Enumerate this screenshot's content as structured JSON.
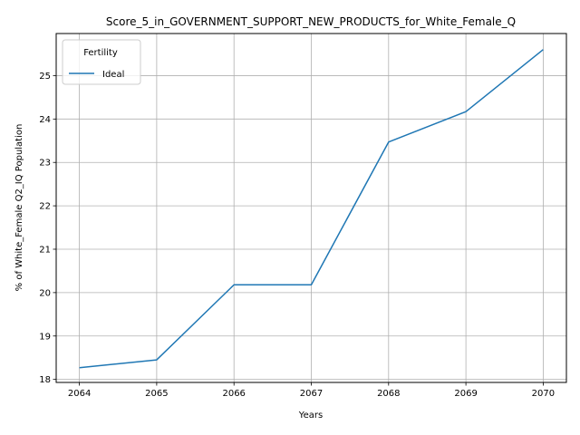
{
  "chart_data": {
    "type": "line",
    "title": "Score_5_in_GOVERNMENT_SUPPORT_NEW_PRODUCTS_for_White_Female_Q",
    "xlabel": "Years",
    "ylabel": "% of White_Female Q2_IQ Population",
    "x": [
      2064,
      2065,
      2066,
      2067,
      2068,
      2069,
      2070
    ],
    "x_ticks": [
      "2064",
      "2065",
      "2066",
      "2067",
      "2068",
      "2069",
      "2070"
    ],
    "y_ticks": [
      "18",
      "19",
      "20",
      "21",
      "22",
      "23",
      "24",
      "25"
    ],
    "xlim": [
      2063.7,
      2070.3
    ],
    "ylim": [
      17.93,
      25.97
    ],
    "grid": true,
    "legend": {
      "title": "Fertility",
      "placement": "top-left"
    },
    "series": [
      {
        "name": "Ideal",
        "color": "#1f77b4",
        "values": [
          18.27,
          18.45,
          20.18,
          20.18,
          23.47,
          24.17,
          25.6
        ]
      }
    ]
  }
}
